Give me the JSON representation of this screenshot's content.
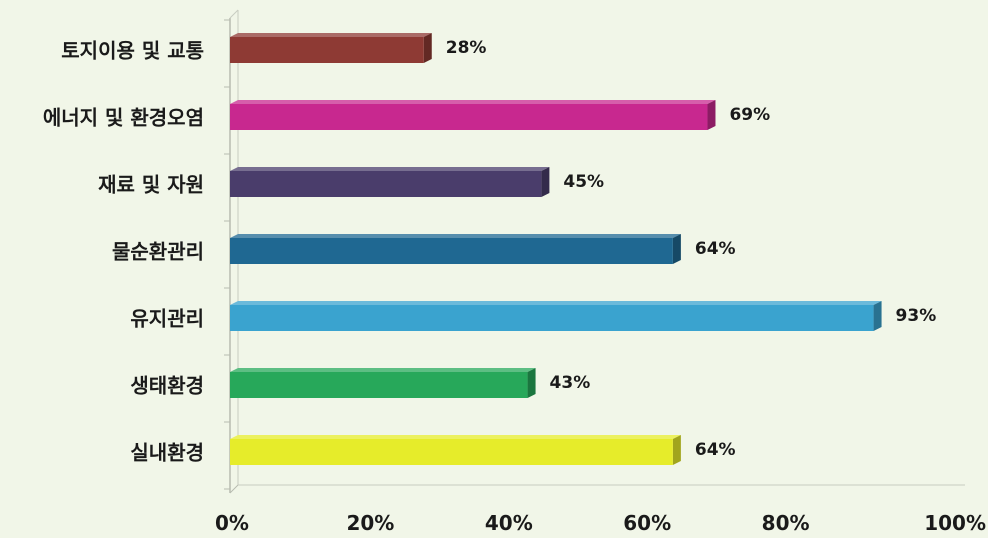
{
  "chart_data": {
    "type": "bar",
    "orientation": "horizontal",
    "style": "3d",
    "categories": [
      "토지이용 및 교통",
      "에너지 및 환경오염",
      "재료 및 자원",
      "물순환관리",
      "유지관리",
      "생태환경",
      "실내환경"
    ],
    "values": [
      28,
      69,
      45,
      64,
      93,
      43,
      64
    ],
    "value_labels": [
      "28%",
      "69%",
      "45%",
      "64%",
      "93%",
      "43%",
      "64%"
    ],
    "colors": [
      "#8e3a34",
      "#c8288f",
      "#4a3d6b",
      "#1f6892",
      "#3aa3cf",
      "#27a85a",
      "#e6ec2a"
    ],
    "xlim": [
      0,
      100
    ],
    "x_ticks": [
      0,
      20,
      40,
      60,
      80,
      100
    ],
    "x_tick_labels": [
      "0%",
      "20%",
      "40%",
      "60%",
      "80%",
      "100%"
    ],
    "grid": false,
    "legend": "none"
  }
}
